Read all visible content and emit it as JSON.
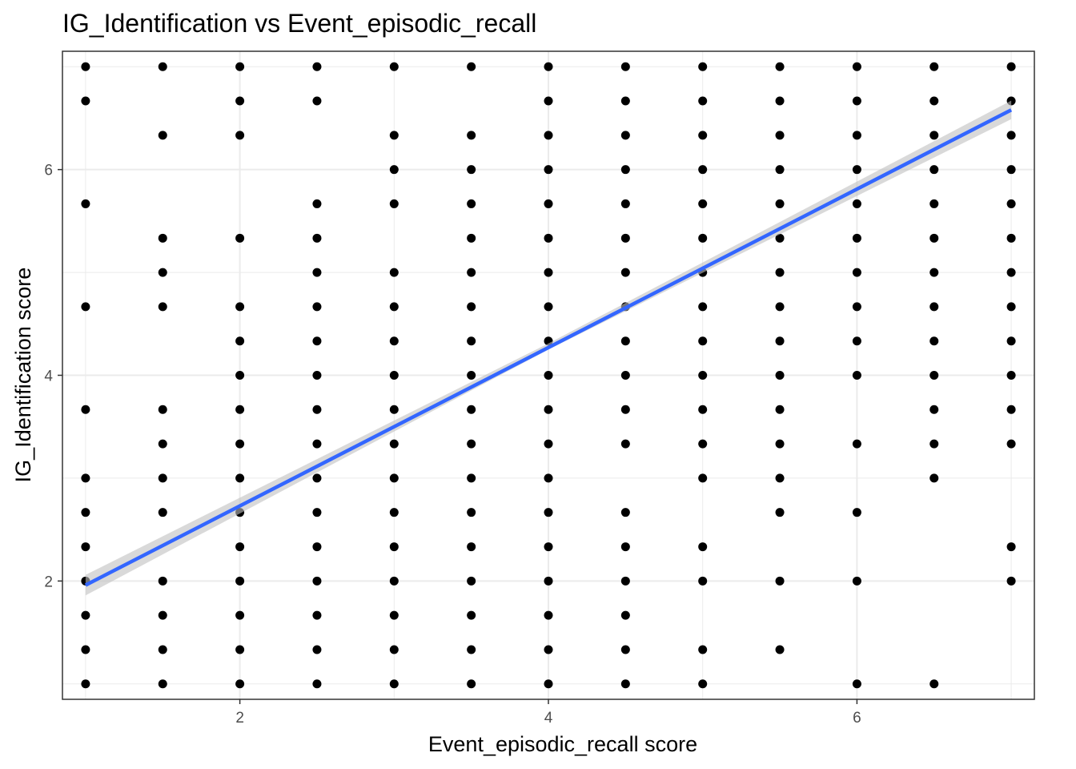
{
  "chart_data": {
    "type": "scatter",
    "title": "IG_Identification vs Event_episodic_recall",
    "xlabel": "Event_episodic_recall score",
    "ylabel": "IG_Identification score",
    "xlim": [
      0.85,
      7.15
    ],
    "ylim": [
      0.85,
      7.15
    ],
    "x_ticks": [
      2,
      4,
      6
    ],
    "y_ticks": [
      2,
      4,
      6
    ],
    "grid": true,
    "colors": {
      "points": "#000000",
      "line": "#3366ff",
      "band": "#bfbfbf",
      "grid": "#ebebeb",
      "panel_border": "#333333"
    },
    "points_by_x": [
      {
        "x": 1.0,
        "ys": [
          7.0,
          6.667,
          5.667,
          4.667,
          3.667,
          3.0,
          2.667,
          2.333,
          2.0,
          1.667,
          1.333,
          1.0
        ]
      },
      {
        "x": 1.5,
        "ys": [
          7.0,
          6.333,
          5.333,
          5.0,
          4.667,
          3.667,
          3.333,
          3.0,
          2.667,
          2.0,
          1.667,
          1.333,
          1.0
        ]
      },
      {
        "x": 2.0,
        "ys": [
          7.0,
          6.667,
          6.333,
          5.333,
          4.667,
          4.333,
          4.0,
          3.667,
          3.333,
          3.0,
          2.667,
          2.333,
          2.0,
          1.667,
          1.333,
          1.0
        ]
      },
      {
        "x": 2.5,
        "ys": [
          7.0,
          6.667,
          5.667,
          5.333,
          5.0,
          4.667,
          4.333,
          4.0,
          3.667,
          3.333,
          3.0,
          2.667,
          2.333,
          2.0,
          1.667,
          1.333,
          1.0
        ]
      },
      {
        "x": 3.0,
        "ys": [
          7.0,
          6.333,
          6.0,
          5.667,
          5.0,
          4.667,
          4.333,
          4.0,
          3.667,
          3.333,
          3.0,
          2.667,
          2.333,
          2.0,
          1.667,
          1.333,
          1.0
        ]
      },
      {
        "x": 3.5,
        "ys": [
          7.0,
          6.333,
          6.0,
          5.667,
          5.333,
          5.0,
          4.667,
          4.333,
          4.0,
          3.667,
          3.333,
          3.0,
          2.667,
          2.333,
          2.0,
          1.667,
          1.333,
          1.0
        ]
      },
      {
        "x": 4.0,
        "ys": [
          7.0,
          6.667,
          6.333,
          6.0,
          5.667,
          5.333,
          5.0,
          4.667,
          4.333,
          4.0,
          3.667,
          3.333,
          3.0,
          2.667,
          2.333,
          2.0,
          1.667,
          1.333,
          1.0
        ]
      },
      {
        "x": 4.5,
        "ys": [
          7.0,
          6.667,
          6.333,
          6.0,
          5.667,
          5.333,
          5.0,
          4.667,
          4.333,
          4.0,
          3.667,
          3.333,
          2.667,
          2.333,
          2.0,
          1.667,
          1.333,
          1.0
        ]
      },
      {
        "x": 5.0,
        "ys": [
          7.0,
          6.667,
          6.333,
          6.0,
          5.667,
          5.333,
          5.0,
          4.667,
          4.333,
          4.0,
          3.667,
          3.333,
          3.0,
          2.333,
          2.0,
          1.333,
          1.0
        ]
      },
      {
        "x": 5.5,
        "ys": [
          7.0,
          6.667,
          6.333,
          6.0,
          5.667,
          5.333,
          5.0,
          4.667,
          4.333,
          4.0,
          3.667,
          3.333,
          3.0,
          2.667,
          2.0,
          1.333
        ]
      },
      {
        "x": 6.0,
        "ys": [
          7.0,
          6.667,
          6.333,
          6.0,
          5.667,
          5.333,
          5.0,
          4.667,
          4.333,
          4.0,
          3.333,
          2.667,
          2.0,
          1.0
        ]
      },
      {
        "x": 6.5,
        "ys": [
          7.0,
          6.667,
          6.333,
          6.0,
          5.667,
          5.333,
          5.0,
          4.667,
          4.333,
          4.0,
          3.667,
          3.333,
          3.0,
          1.0
        ]
      },
      {
        "x": 7.0,
        "ys": [
          7.0,
          6.667,
          6.333,
          6.0,
          5.667,
          5.333,
          5.0,
          4.667,
          4.333,
          4.0,
          3.667,
          3.333,
          2.333,
          2.0
        ]
      }
    ],
    "fit_line": {
      "x": [
        1.0,
        7.0
      ],
      "y": [
        1.96,
        6.58
      ]
    },
    "confidence_band": {
      "x": [
        1.0,
        4.0,
        7.0
      ],
      "lower": [
        1.86,
        4.25,
        6.49
      ],
      "upper": [
        2.06,
        4.31,
        6.67
      ]
    }
  }
}
